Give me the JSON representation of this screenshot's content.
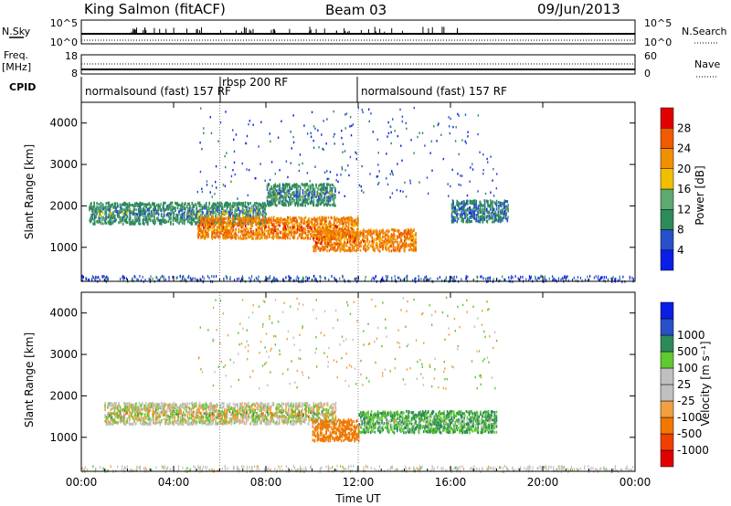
{
  "header": {
    "station": "King Salmon (fitACF)",
    "beam": "Beam 03",
    "date": "09/Jun/2013"
  },
  "aux_panel": {
    "left_labels": {
      "nsky": "N.Sky",
      "freq_top": "Freq.",
      "freq_unit": "[MHz]",
      "cpid": "CPID"
    },
    "right_labels": {
      "nsearch": "N.Search",
      "nave": "Nave"
    },
    "noise_ticks_left": [
      "10^5",
      "10^0"
    ],
    "noise_ticks_right": [
      "10^5",
      "10^0"
    ],
    "freq_ticks": [
      "18",
      "8"
    ],
    "nave_ticks": [
      "60",
      "0"
    ],
    "cpid_segments": [
      {
        "label": "normalsound (fast) 157 RF",
        "start_hr": 0,
        "end_hr": 6
      },
      {
        "label": "rbsp 200 RF",
        "start_hr": 6,
        "end_hr": 12
      },
      {
        "label": "normalsound (fast) 157 RF",
        "start_hr": 12,
        "end_hr": 24
      }
    ]
  },
  "colors": {
    "power_scale": [
      "#0a1ee6",
      "#2850c8",
      "#2d8a5a",
      "#5fa870",
      "#f0c000",
      "#f09000",
      "#f05a00",
      "#e00000"
    ],
    "velocity_scale": [
      "#e00000",
      "#f04000",
      "#f07800",
      "#f0a040",
      "#c0c0c0",
      "#c0c0c0",
      "#60c830",
      "#2d8a5a",
      "#2850c8",
      "#0a1ee6"
    ]
  },
  "chart_data": [
    {
      "type": "heatmap",
      "title": "",
      "xlabel": "",
      "ylabel": "Slant Range [km]",
      "xlim": [
        0,
        24
      ],
      "ylim": [
        180,
        4500
      ],
      "yticks": [
        "1000",
        "2000",
        "3000",
        "4000"
      ],
      "colorbar_label": "Power [dB]",
      "colorbar_ticks": [
        "4",
        "8",
        "12",
        "16",
        "20",
        "24",
        "28"
      ],
      "colorbar_range": [
        0,
        30
      ],
      "features": [
        {
          "name": "band",
          "t_start": 0.3,
          "t_end": 8,
          "range_km": 1850,
          "value": 10
        },
        {
          "name": "band",
          "t_start": 5,
          "t_end": 12,
          "range_km": 1500,
          "value": 22
        },
        {
          "name": "band",
          "t_start": 10,
          "t_end": 14.5,
          "range_km": 1200,
          "value": 22
        },
        {
          "name": "band",
          "t_start": 8,
          "t_end": 11,
          "range_km": 2300,
          "value": 10
        },
        {
          "name": "band",
          "t_start": 16,
          "t_end": 18.5,
          "range_km": 1900,
          "value": 8
        }
      ]
    },
    {
      "type": "heatmap",
      "title": "",
      "xlabel": "Time UT",
      "ylabel": "Slant Range [km]",
      "xlim": [
        0,
        24
      ],
      "ylim": [
        180,
        4500
      ],
      "xticks": [
        "00:00",
        "04:00",
        "08:00",
        "12:00",
        "16:00",
        "20:00",
        "00:00"
      ],
      "yticks": [
        "1000",
        "2000",
        "3000",
        "4000"
      ],
      "colorbar_label": "Velocity [m s⁻¹]",
      "colorbar_ticks": [
        "-1000",
        "-500",
        "-100",
        "-25",
        "25",
        "100",
        "500",
        "1000"
      ],
      "features": [
        {
          "name": "band",
          "t_start": 1,
          "t_end": 11,
          "range_km": 1600,
          "value": 0
        },
        {
          "name": "band",
          "t_start": 10,
          "t_end": 12,
          "range_km": 1200,
          "value": -200
        },
        {
          "name": "band",
          "t_start": 12,
          "t_end": 18,
          "range_km": 1400,
          "value": 100
        }
      ]
    }
  ]
}
